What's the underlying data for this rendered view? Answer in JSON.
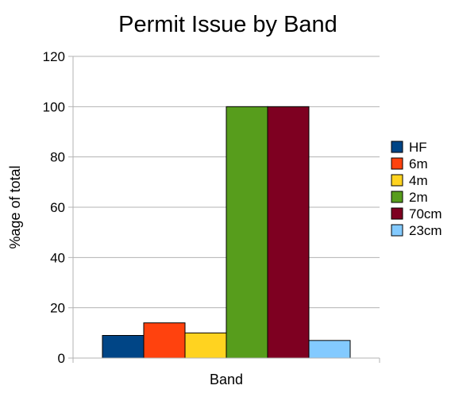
{
  "chart_data": {
    "type": "bar",
    "title": "Permit Issue by Band",
    "xlabel": "Band",
    "ylabel": "%age of total",
    "categories": [
      "Band"
    ],
    "ylim": [
      0,
      120
    ],
    "yticks": [
      0,
      20,
      40,
      60,
      80,
      100,
      120
    ],
    "grid": "horizontal",
    "legend_position": "right",
    "series": [
      {
        "name": "HF",
        "values": [
          9
        ],
        "color": "#004586"
      },
      {
        "name": "6m",
        "values": [
          14
        ],
        "color": "#ff420e"
      },
      {
        "name": "4m",
        "values": [
          10
        ],
        "color": "#ffd320"
      },
      {
        "name": "2m",
        "values": [
          100
        ],
        "color": "#579d1c"
      },
      {
        "name": "70cm",
        "values": [
          100
        ],
        "color": "#7e0021"
      },
      {
        "name": "23cm",
        "values": [
          7
        ],
        "color": "#83caff"
      }
    ]
  }
}
